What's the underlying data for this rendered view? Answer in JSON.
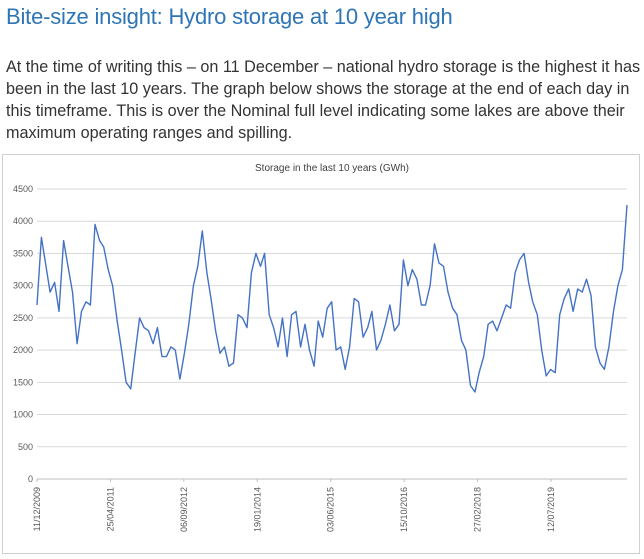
{
  "heading": "Bite-size insight: Hydro storage at 10 year high",
  "paragraph": "At the time of writing this – on 11 December – national hydro storage is the highest it has been in the last 10 years. The graph below shows the storage at the end of each day in this timeframe. This is over the Nominal full level indicating some lakes are above their maximum operating ranges and spilling.",
  "colors": {
    "heading": "#2e75b6",
    "line": "#4472c4",
    "grid": "#d9d9d9"
  },
  "chart_data": {
    "type": "line",
    "title": "Storage in the last 10 years (GWh)",
    "xlabel": "",
    "ylabel": "",
    "ylim": [
      0,
      4500
    ],
    "yticks": [
      0,
      500,
      1000,
      1500,
      2000,
      2500,
      3000,
      3500,
      4000,
      4500
    ],
    "xlim": [
      "2009-12-11",
      "2020-12-11"
    ],
    "xticks": [
      "11/12/2009",
      "25/04/2011",
      "06/09/2012",
      "19/01/2014",
      "03/06/2015",
      "15/10/2016",
      "27/02/2018",
      "12/07/2019"
    ],
    "grid": true,
    "legend": "none",
    "series": [
      {
        "name": "Storage (GWh)",
        "x": [
          "2009-12-11",
          "2010-01-10",
          "2010-02-10",
          "2010-03-10",
          "2010-04-10",
          "2010-05-10",
          "2010-06-10",
          "2010-07-10",
          "2010-08-10",
          "2010-09-10",
          "2010-10-10",
          "2010-11-10",
          "2010-12-10",
          "2011-01-10",
          "2011-02-10",
          "2011-03-10",
          "2011-04-10",
          "2011-05-10",
          "2011-06-10",
          "2011-07-10",
          "2011-08-10",
          "2011-09-10",
          "2011-10-10",
          "2011-11-10",
          "2011-12-10",
          "2012-01-10",
          "2012-02-10",
          "2012-03-10",
          "2012-04-10",
          "2012-05-10",
          "2012-06-10",
          "2012-07-10",
          "2012-08-10",
          "2012-09-10",
          "2012-10-10",
          "2012-11-10",
          "2012-12-10",
          "2013-01-10",
          "2013-02-10",
          "2013-03-10",
          "2013-04-10",
          "2013-05-10",
          "2013-06-10",
          "2013-07-10",
          "2013-08-10",
          "2013-09-10",
          "2013-10-10",
          "2013-11-10",
          "2013-12-10",
          "2014-01-10",
          "2014-02-10",
          "2014-03-10",
          "2014-04-10",
          "2014-05-10",
          "2014-06-10",
          "2014-07-10",
          "2014-08-10",
          "2014-09-10",
          "2014-10-10",
          "2014-11-10",
          "2014-12-10",
          "2015-01-10",
          "2015-02-10",
          "2015-03-10",
          "2015-04-10",
          "2015-05-10",
          "2015-06-10",
          "2015-07-10",
          "2015-08-10",
          "2015-09-10",
          "2015-10-10",
          "2015-11-10",
          "2015-12-10",
          "2016-01-10",
          "2016-02-10",
          "2016-03-10",
          "2016-04-10",
          "2016-05-10",
          "2016-06-10",
          "2016-07-10",
          "2016-08-10",
          "2016-09-10",
          "2016-10-10",
          "2016-11-10",
          "2016-12-10",
          "2017-01-10",
          "2017-02-10",
          "2017-03-10",
          "2017-04-10",
          "2017-05-10",
          "2017-06-10",
          "2017-07-10",
          "2017-08-10",
          "2017-09-10",
          "2017-10-10",
          "2017-11-10",
          "2017-12-10",
          "2018-01-10",
          "2018-02-10",
          "2018-03-10",
          "2018-04-10",
          "2018-05-10",
          "2018-06-10",
          "2018-07-10",
          "2018-08-10",
          "2018-09-10",
          "2018-10-10",
          "2018-11-10",
          "2018-12-10",
          "2019-01-10",
          "2019-02-10",
          "2019-03-10",
          "2019-04-10",
          "2019-05-10",
          "2019-06-10",
          "2019-07-10",
          "2019-08-10",
          "2019-09-10",
          "2019-10-10",
          "2019-11-10",
          "2019-12-10",
          "2020-01-10",
          "2020-02-10",
          "2020-03-10",
          "2020-04-10",
          "2020-05-10",
          "2020-06-10",
          "2020-07-10",
          "2020-08-10",
          "2020-09-10",
          "2020-10-10",
          "2020-11-10",
          "2020-12-11"
        ],
        "values": [
          2700,
          3750,
          3300,
          2900,
          3050,
          2600,
          3700,
          3300,
          2900,
          2100,
          2600,
          2750,
          2700,
          3950,
          3700,
          3600,
          3250,
          3000,
          2450,
          2000,
          1500,
          1400,
          1950,
          2500,
          2350,
          2300,
          2100,
          2350,
          1900,
          1900,
          2050,
          2000,
          1550,
          1950,
          2400,
          3000,
          3300,
          3850,
          3200,
          2800,
          2300,
          1950,
          2050,
          1750,
          1800,
          2550,
          2500,
          2350,
          3200,
          3500,
          3300,
          3500,
          2550,
          2350,
          2050,
          2500,
          1900,
          2550,
          2600,
          2050,
          2400,
          2000,
          1750,
          2450,
          2200,
          2650,
          2750,
          2000,
          2050,
          1700,
          2050,
          2800,
          2750,
          2200,
          2350,
          2600,
          2000,
          2150,
          2400,
          2700,
          2300,
          2400,
          3400,
          3000,
          3250,
          3100,
          2700,
          2700,
          3000,
          3650,
          3350,
          3300,
          2900,
          2650,
          2550,
          2150,
          2000,
          1450,
          1350,
          1650,
          1900,
          2400,
          2450,
          2300,
          2500,
          2700,
          2650,
          3200,
          3400,
          3500,
          3050,
          2750,
          2550,
          2000,
          1600,
          1700,
          1650,
          2550,
          2800,
          2950,
          2600,
          2950,
          2900,
          3100,
          2850,
          2050,
          1800,
          1700,
          2050,
          2600,
          3000,
          3250,
          4250
        ]
      }
    ]
  }
}
